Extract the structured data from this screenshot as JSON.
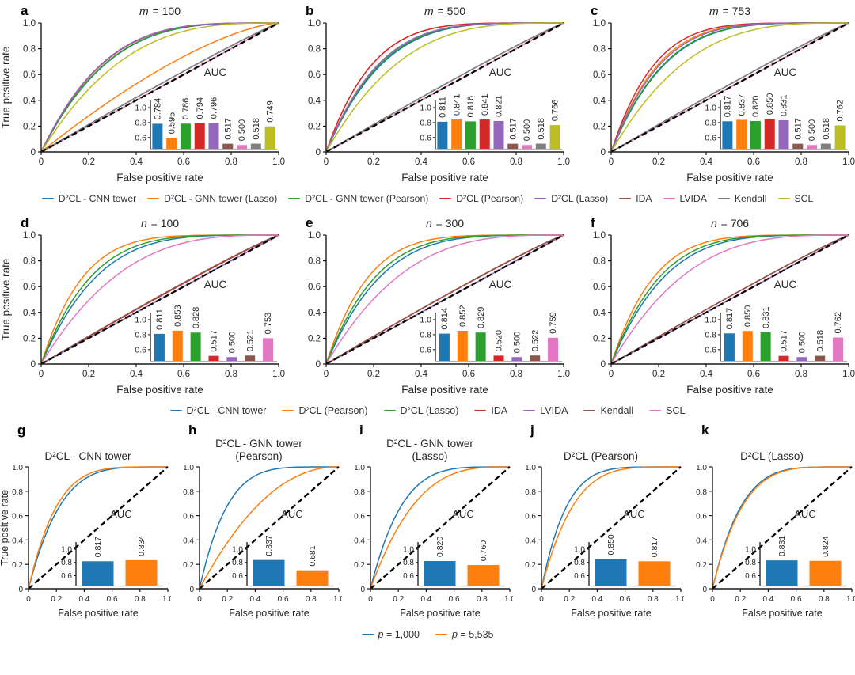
{
  "figure_name": "ROC curves with AUC insets",
  "chart_data": [
    {
      "group": "top-row",
      "type": "line",
      "inset_type": "bar",
      "xlabel": "False positive rate",
      "ylabel": "True positive rate",
      "xlim": [
        0,
        1
      ],
      "ylim": [
        0,
        1
      ],
      "xticks": [
        "0",
        "0.2",
        "0.4",
        "0.6",
        "0.8",
        "1.0"
      ],
      "yticks": [
        "0",
        "0.2",
        "0.4",
        "0.6",
        "0.8",
        "1.0"
      ],
      "diagonal_reference": "dashed black chance line",
      "inset": {
        "title": "AUC",
        "yticks": [
          "0.6",
          "0.8",
          "1.0"
        ],
        "ylim": [
          0.45,
          1.0
        ]
      },
      "methods": [
        {
          "name": "D²CL - CNN tower",
          "color": "#1f77b4"
        },
        {
          "name": "D²CL - GNN tower (Lasso)",
          "color": "#ff7f0e"
        },
        {
          "name": "D²CL - GNN tower (Pearson)",
          "color": "#2ca02c"
        },
        {
          "name": "D²CL (Pearson)",
          "color": "#d62728"
        },
        {
          "name": "D²CL (Lasso)",
          "color": "#9467bd"
        },
        {
          "name": "IDA",
          "color": "#8c564b"
        },
        {
          "name": "LVIDA",
          "color": "#e377c2"
        },
        {
          "name": "Kendall",
          "color": "#7f7f7f"
        },
        {
          "name": "SCL",
          "color": "#bcbd22"
        }
      ],
      "panels": [
        {
          "letter": "a",
          "title_italic": "m",
          "title_rest": " = 100",
          "auc": [
            0.784,
            0.595,
            0.786,
            0.794,
            0.796,
            0.517,
            0.5,
            0.518,
            0.749
          ]
        },
        {
          "letter": "b",
          "title_italic": "m",
          "title_rest": " = 500",
          "auc": [
            0.811,
            0.841,
            0.816,
            0.841,
            0.821,
            0.517,
            0.5,
            0.518,
            0.766
          ]
        },
        {
          "letter": "c",
          "title_italic": "m",
          "title_rest": " = 753",
          "auc": [
            0.817,
            0.837,
            0.82,
            0.85,
            0.831,
            0.517,
            0.5,
            0.518,
            0.762
          ]
        }
      ]
    },
    {
      "group": "middle-row",
      "type": "line",
      "inset_type": "bar",
      "xlabel": "False positive rate",
      "ylabel": "True positive rate",
      "xlim": [
        0,
        1
      ],
      "ylim": [
        0,
        1
      ],
      "xticks": [
        "0",
        "0.2",
        "0.4",
        "0.6",
        "0.8",
        "1.0"
      ],
      "yticks": [
        "0",
        "0.2",
        "0.4",
        "0.6",
        "0.8",
        "1.0"
      ],
      "diagonal_reference": "dashed black chance line",
      "inset": {
        "title": "AUC",
        "yticks": [
          "0.6",
          "0.8",
          "1.0"
        ],
        "ylim": [
          0.45,
          1.0
        ]
      },
      "methods": [
        {
          "name": "D²CL - CNN tower",
          "color": "#1f77b4"
        },
        {
          "name": "D²CL (Pearson)",
          "color": "#ff7f0e"
        },
        {
          "name": "D²CL (Lasso)",
          "color": "#2ca02c"
        },
        {
          "name": "IDA",
          "color": "#d62728"
        },
        {
          "name": "LVIDA",
          "color": "#9467bd"
        },
        {
          "name": "Kendall",
          "color": "#8c564b"
        },
        {
          "name": "SCL",
          "color": "#e377c2"
        }
      ],
      "panels": [
        {
          "letter": "d",
          "title_italic": "n",
          "title_rest": " = 100",
          "auc": [
            0.811,
            0.853,
            0.828,
            0.517,
            0.5,
            0.521,
            0.753
          ]
        },
        {
          "letter": "e",
          "title_italic": "n",
          "title_rest": " = 300",
          "auc": [
            0.814,
            0.852,
            0.829,
            0.52,
            0.5,
            0.522,
            0.759
          ]
        },
        {
          "letter": "f",
          "title_italic": "n",
          "title_rest": " = 706",
          "auc": [
            0.817,
            0.85,
            0.831,
            0.517,
            0.5,
            0.518,
            0.762
          ]
        }
      ]
    },
    {
      "group": "bottom-row",
      "type": "line",
      "inset_type": "bar",
      "xlabel": "False positive rate",
      "ylabel": "True positive rate",
      "xlim": [
        0,
        1
      ],
      "ylim": [
        0,
        1
      ],
      "xticks": [
        "0",
        "0.2",
        "0.4",
        "0.6",
        "0.8",
        "1.0"
      ],
      "yticks": [
        "0",
        "0.2",
        "0.4",
        "0.6",
        "0.8",
        "1.0"
      ],
      "diagonal_reference": "dashed black chance line",
      "inset": {
        "title": "AUC",
        "yticks": [
          "0.6",
          "0.8",
          "1.0"
        ],
        "ylim": [
          0.45,
          1.0
        ]
      },
      "methods": [
        {
          "name_italic": "p",
          "name": " = 1,000",
          "color": "#1f77b4"
        },
        {
          "name_italic": "p",
          "name": " = 5,535",
          "color": "#ff7f0e"
        }
      ],
      "panels": [
        {
          "letter": "g",
          "title_rest": "D²CL - CNN tower",
          "auc": [
            0.817,
            0.834
          ]
        },
        {
          "letter": "h",
          "title_rest": "D²CL - GNN tower\n(Pearson)",
          "auc": [
            0.837,
            0.681
          ]
        },
        {
          "letter": "i",
          "title_rest": "D²CL - GNN tower\n(Lasso)",
          "auc": [
            0.82,
            0.76
          ]
        },
        {
          "letter": "j",
          "title_rest": "D²CL (Pearson)",
          "auc": [
            0.85,
            0.817
          ]
        },
        {
          "letter": "k",
          "title_rest": "D²CL (Lasso)",
          "auc": [
            0.831,
            0.824
          ]
        }
      ]
    }
  ]
}
